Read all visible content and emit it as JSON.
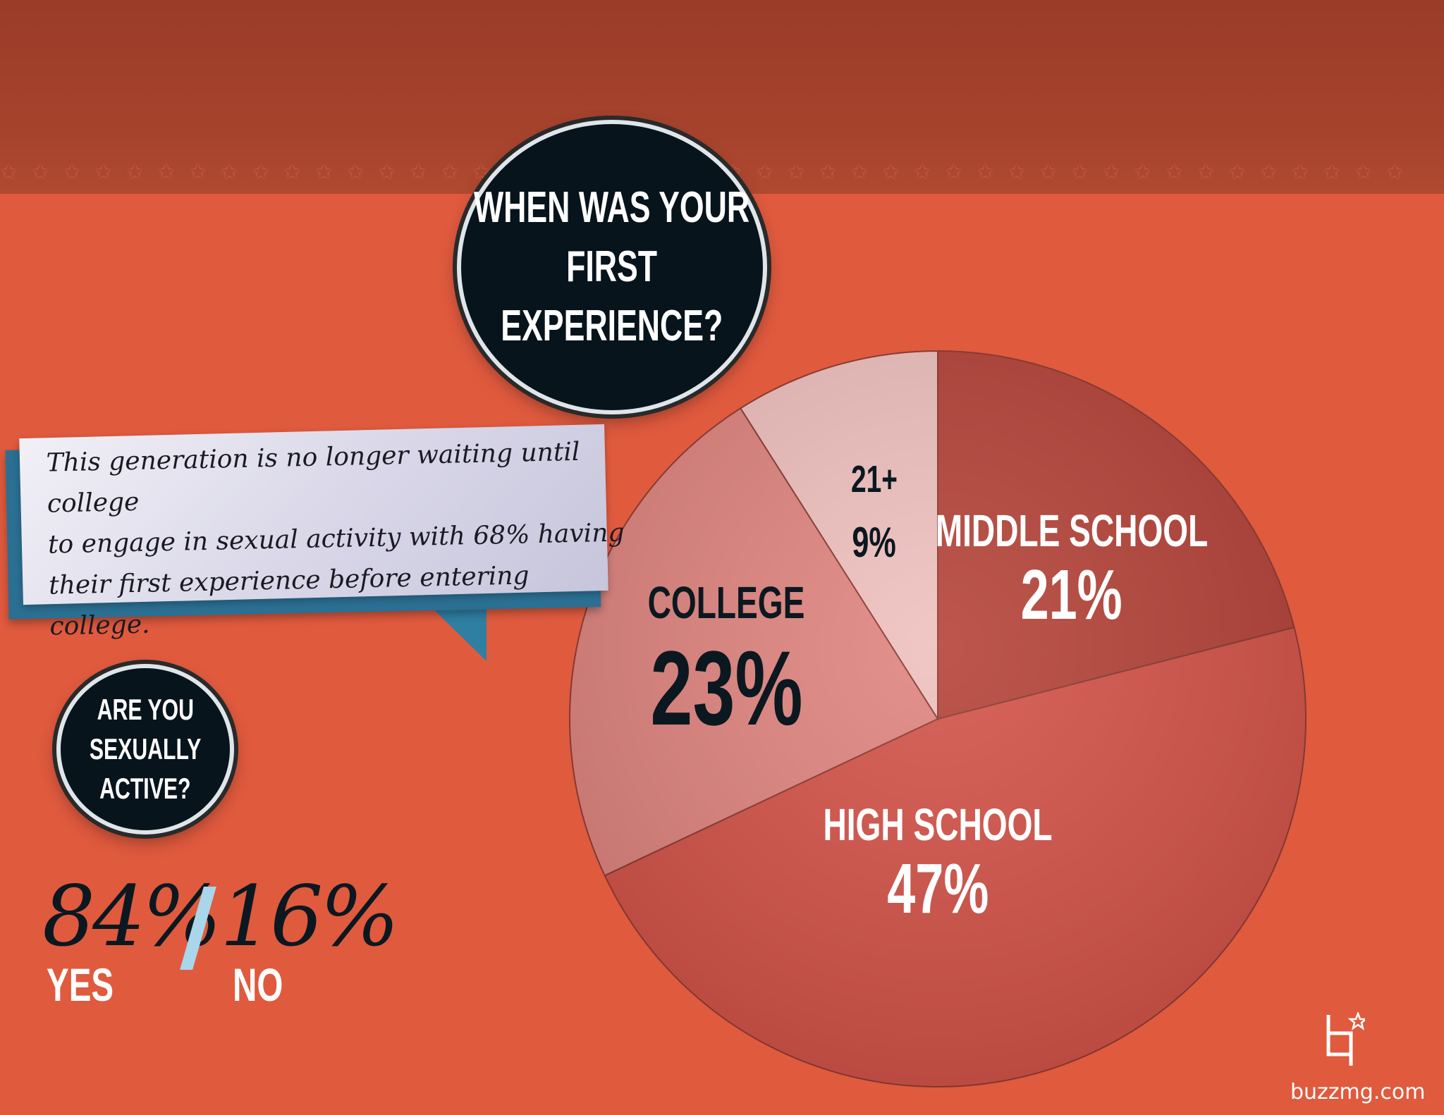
{
  "chart_data": {
    "type": "pie",
    "title": "WHEN WAS YOUR FIRST EXPERIENCE?",
    "categories": [
      "MIDDLE SCHOOL",
      "HIGH SCHOOL",
      "COLLEGE",
      "21+"
    ],
    "values": [
      21,
      47,
      23,
      9
    ],
    "value_labels": [
      "21%",
      "47%",
      "23%",
      "9%"
    ],
    "colors": [
      "#b5443a",
      "#d4544a",
      "#e08580",
      "#efc1bf"
    ],
    "label_colors": [
      "#ffffff",
      "#ffffff",
      "#0c1820",
      "#0c1820"
    ]
  },
  "callout": {
    "text_lines": [
      "This generation is no longer waiting until college",
      "to engage in sexual activity with 68% having",
      "their first experience before entering college."
    ]
  },
  "question_active": {
    "lines": [
      "ARE YOU",
      "SEXUALLY",
      "ACTIVE?"
    ],
    "yes_value": "84%",
    "yes_label": "YES",
    "no_value": "16%",
    "no_label": "NO"
  },
  "decor": {
    "star_strip": "✩ ✩ ✩ ✩ ✩ ✩ ✩ ✩ ✩ ✩ ✩ ✩ ✩ ✩ ✩ ✩ ✩ ✩ ✩ ✩ ✩ ✩ ✩ ✩ ✩ ✩ ✩ ✩ ✩ ✩ ✩ ✩ ✩ ✩ ✩ ✩ ✩ ✩ ✩ ✩ ✩ ✩ ✩ ✩ ✩"
  },
  "brand": {
    "site": "buzzmg.com",
    "logo_icon": "buzz-logo-icon"
  }
}
